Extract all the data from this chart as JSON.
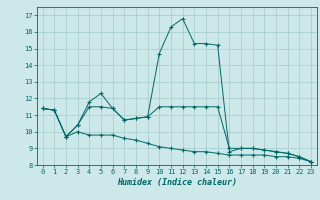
{
  "title": "",
  "xlabel": "Humidex (Indice chaleur)",
  "background_color": "#cce8e8",
  "grid_color": "#aacece",
  "line_color": "#006868",
  "xlim": [
    -0.5,
    23.5
  ],
  "ylim": [
    8,
    17.5
  ],
  "xticks": [
    0,
    1,
    2,
    3,
    4,
    5,
    6,
    7,
    8,
    9,
    10,
    11,
    12,
    13,
    14,
    15,
    16,
    17,
    18,
    19,
    20,
    21,
    22,
    23
  ],
  "yticks": [
    8,
    9,
    10,
    11,
    12,
    13,
    14,
    15,
    16,
    17
  ],
  "series": [
    [
      11.4,
      11.3,
      9.7,
      10.4,
      11.8,
      12.3,
      11.4,
      10.7,
      10.8,
      10.9,
      14.7,
      16.3,
      16.8,
      15.3,
      15.3,
      15.2,
      8.8,
      9.0,
      9.0,
      8.9,
      8.8,
      8.7,
      8.5,
      8.2
    ],
    [
      11.4,
      11.3,
      9.7,
      10.4,
      11.5,
      11.5,
      11.4,
      10.7,
      10.8,
      10.9,
      11.5,
      11.5,
      11.5,
      11.5,
      11.5,
      11.5,
      9.0,
      9.0,
      9.0,
      8.9,
      8.8,
      8.7,
      8.5,
      8.2
    ],
    [
      11.4,
      11.3,
      9.7,
      10.0,
      9.8,
      9.8,
      9.8,
      9.6,
      9.5,
      9.3,
      9.1,
      9.0,
      8.9,
      8.8,
      8.8,
      8.7,
      8.6,
      8.6,
      8.6,
      8.6,
      8.5,
      8.5,
      8.4,
      8.2
    ]
  ]
}
